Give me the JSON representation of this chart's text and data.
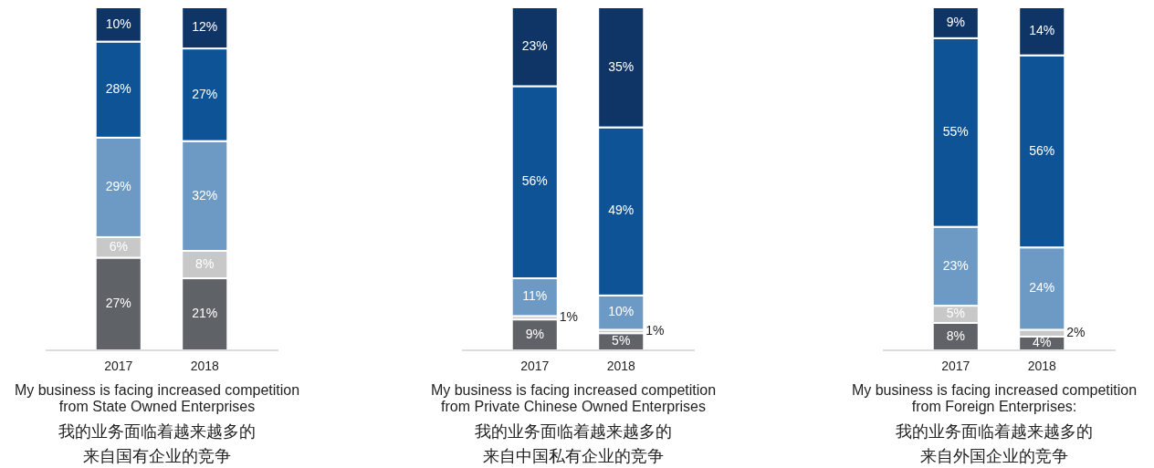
{
  "chart_data": [
    {
      "type": "bar",
      "stacked": true,
      "categories": [
        "2017",
        "2018"
      ],
      "series": [
        {
          "color": "#5f6368",
          "values": [
            27,
            21
          ],
          "value_labels": [
            "27%",
            "21%"
          ]
        },
        {
          "color": "#c8c8c8",
          "values": [
            6,
            8
          ],
          "value_labels": [
            "6%",
            "8%"
          ]
        },
        {
          "color": "#6d9ac4",
          "values": [
            29,
            32
          ],
          "value_labels": [
            "29%",
            "32%"
          ]
        },
        {
          "color": "#0d5395",
          "values": [
            28,
            27
          ],
          "value_labels": [
            "28%",
            "27%"
          ]
        },
        {
          "color": "#0f3466",
          "values": [
            10,
            12
          ],
          "value_labels": [
            "10%",
            "12%"
          ]
        }
      ],
      "xlabel": "My business is facing increased competition\nfrom State Owned Enterprises",
      "annotations": [
        "我的业务面临着越来越多的来自国有企业的竞争"
      ]
    },
    {
      "type": "bar",
      "stacked": true,
      "categories": [
        "2017",
        "2018"
      ],
      "series": [
        {
          "color": "#5f6368",
          "values": [
            9,
            5
          ],
          "value_labels": [
            "9%",
            "5%"
          ]
        },
        {
          "color": "#c8c8c8",
          "values": [
            1,
            1
          ],
          "value_labels": [
            "1%",
            "1%"
          ]
        },
        {
          "color": "#6d9ac4",
          "values": [
            11,
            10
          ],
          "value_labels": [
            "11%",
            "10%"
          ]
        },
        {
          "color": "#0d5395",
          "values": [
            56,
            49
          ],
          "value_labels": [
            "56%",
            "49%"
          ]
        },
        {
          "color": "#0f3466",
          "values": [
            23,
            35
          ],
          "value_labels": [
            "23%",
            "35%"
          ]
        }
      ],
      "xlabel": "My business is facing increased competition\nfrom Private Chinese Owned Enterprises",
      "annotations": [
        "我的业务面临着越来越多的来自中国私有企业的竞争"
      ]
    },
    {
      "type": "bar",
      "stacked": true,
      "categories": [
        "2017",
        "2018"
      ],
      "series": [
        {
          "color": "#5f6368",
          "values": [
            8,
            4
          ],
          "value_labels": [
            "8%",
            "4%"
          ]
        },
        {
          "color": "#c8c8c8",
          "values": [
            5,
            2
          ],
          "value_labels": [
            "5%",
            "2%"
          ]
        },
        {
          "color": "#6d9ac4",
          "values": [
            23,
            24
          ],
          "value_labels": [
            "23%",
            "24%"
          ]
        },
        {
          "color": "#0d5395",
          "values": [
            55,
            56
          ],
          "value_labels": [
            "55%",
            "56%"
          ]
        },
        {
          "color": "#0f3466",
          "values": [
            9,
            14
          ],
          "value_labels": [
            "9%",
            "14%"
          ]
        }
      ],
      "xlabel": "My business is facing increased competition\nfrom Foreign Enterprises:",
      "annotations": [
        "我的业务面临着越来越多的来自外国企业的竞争"
      ]
    }
  ]
}
